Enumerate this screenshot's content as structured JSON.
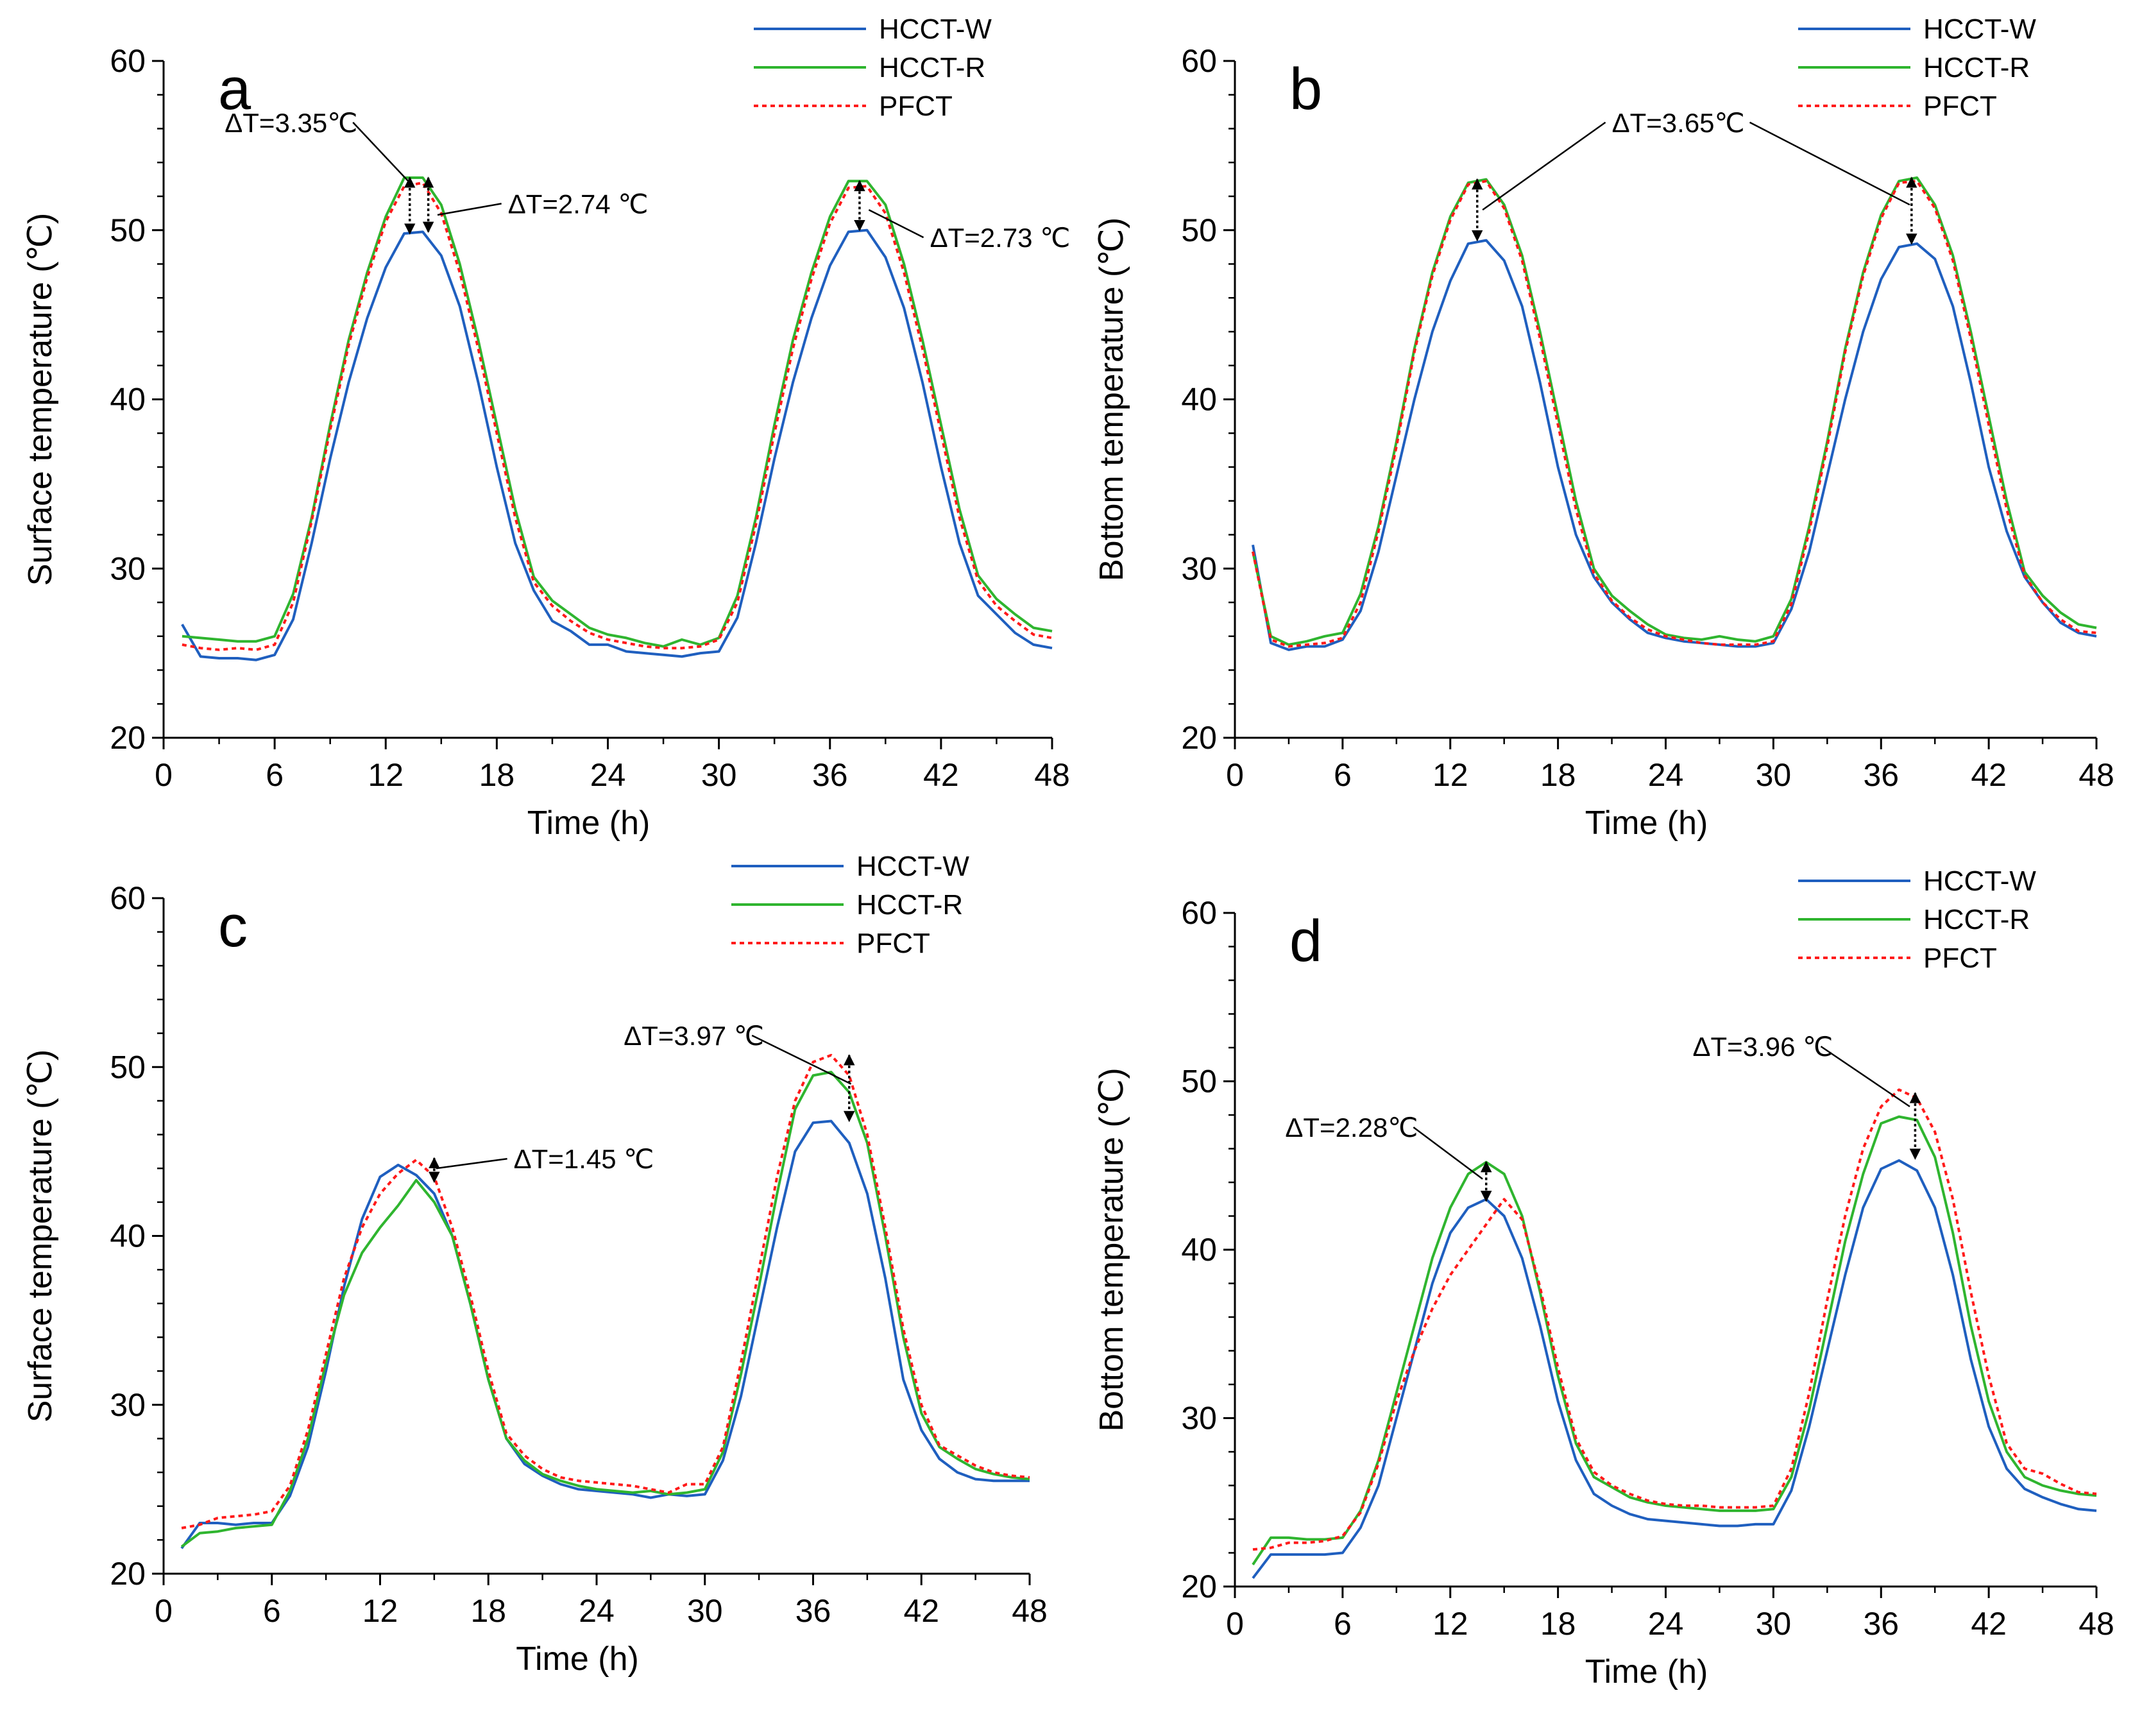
{
  "colors": {
    "hcct_w": "#1f5fbf",
    "hcct_r": "#2fb52f",
    "pfct": "#ff1a1a",
    "axis": "#000000"
  },
  "chart_data": [
    {
      "id": "a",
      "type": "line",
      "panel_label": "a",
      "xlabel": "Time (h)",
      "ylabel": "Surface temperature (℃)",
      "xlim": [
        0,
        48
      ],
      "ylim": [
        20,
        60
      ],
      "xticks": [
        0,
        6,
        12,
        18,
        24,
        30,
        36,
        42,
        48
      ],
      "yticks": [
        20,
        30,
        40,
        50,
        60
      ],
      "x": [
        1,
        2,
        3,
        4,
        5,
        6,
        7,
        8,
        9,
        10,
        11,
        12,
        13,
        14,
        15,
        16,
        17,
        18,
        19,
        20,
        21,
        22,
        23,
        24,
        25,
        26,
        27,
        28,
        29,
        30,
        31,
        32,
        33,
        34,
        35,
        36,
        37,
        38,
        39,
        40,
        41,
        42,
        43,
        44,
        45,
        46,
        47,
        48
      ],
      "legend": [
        "HCCT-W",
        "HCCT-R",
        "PFCT"
      ],
      "series": [
        {
          "name": "HCCT-W",
          "values": [
            26.7,
            24.8,
            24.7,
            24.7,
            24.6,
            24.9,
            27.0,
            31.5,
            36.5,
            41.0,
            44.8,
            47.8,
            49.8,
            49.9,
            48.5,
            45.5,
            41.0,
            36.0,
            31.5,
            28.7,
            26.9,
            26.3,
            25.5,
            25.5,
            25.1,
            25.0,
            24.9,
            24.8,
            25.0,
            25.1,
            27.1,
            31.5,
            36.5,
            41.0,
            44.8,
            47.9,
            49.9,
            50.0,
            48.4,
            45.4,
            41.0,
            36.0,
            31.5,
            28.4,
            27.3,
            26.2,
            25.5,
            25.3
          ]
        },
        {
          "name": "HCCT-R",
          "values": [
            26.0,
            25.9,
            25.8,
            25.7,
            25.7,
            26.0,
            28.5,
            33.0,
            38.5,
            43.5,
            47.5,
            50.8,
            53.1,
            53.1,
            51.5,
            48.0,
            43.5,
            38.5,
            33.5,
            29.5,
            28.1,
            27.3,
            26.5,
            26.1,
            25.9,
            25.6,
            25.4,
            25.8,
            25.5,
            25.9,
            28.4,
            33.0,
            38.5,
            43.5,
            47.5,
            50.8,
            52.9,
            52.9,
            51.5,
            48.0,
            43.5,
            38.5,
            33.5,
            29.6,
            28.2,
            27.3,
            26.5,
            26.3
          ]
        },
        {
          "name": "PFCT",
          "values": [
            25.5,
            25.3,
            25.2,
            25.3,
            25.2,
            25.5,
            28.0,
            32.8,
            38.2,
            43.2,
            47.2,
            50.5,
            52.6,
            52.8,
            51.0,
            47.5,
            43.0,
            38.0,
            33.0,
            29.2,
            27.8,
            26.9,
            26.2,
            25.8,
            25.6,
            25.4,
            25.3,
            25.3,
            25.4,
            25.8,
            28.0,
            32.6,
            38.0,
            43.0,
            47.1,
            50.4,
            52.5,
            52.6,
            51.0,
            47.5,
            43.0,
            38.0,
            33.0,
            29.3,
            27.8,
            26.9,
            26.1,
            25.9
          ]
        }
      ],
      "annotations": [
        {
          "text": "ΔT=3.35℃",
          "tx": 3.3,
          "ty": 55.8,
          "ax": 13.3,
          "ay": 52.8,
          "anchor": "start"
        },
        {
          "text": "ΔT=2.74 ℃",
          "tx": 18.6,
          "ty": 51.0,
          "ax": 14.8,
          "ay": 50.9,
          "anchor": "start"
        },
        {
          "text": "ΔT=2.73 ℃",
          "tx": 41.4,
          "ty": 49.0,
          "ax": 38.1,
          "ay": 51.2,
          "anchor": "start"
        }
      ],
      "arrows": [
        {
          "x": 13.3,
          "y1": 53.1,
          "y2": 49.8
        },
        {
          "x": 14.3,
          "y1": 53.1,
          "y2": 49.9
        },
        {
          "x": 37.6,
          "y1": 52.9,
          "y2": 50.0
        }
      ]
    },
    {
      "id": "b",
      "type": "line",
      "panel_label": "b",
      "xlabel": "Time (h)",
      "ylabel": "Bottom temperature (℃)",
      "xlim": [
        0,
        48
      ],
      "ylim": [
        20,
        60
      ],
      "xticks": [
        0,
        6,
        12,
        18,
        24,
        30,
        36,
        42,
        48
      ],
      "yticks": [
        20,
        30,
        40,
        50,
        60
      ],
      "x": [
        1,
        2,
        3,
        4,
        5,
        6,
        7,
        8,
        9,
        10,
        11,
        12,
        13,
        14,
        15,
        16,
        17,
        18,
        19,
        20,
        21,
        22,
        23,
        24,
        25,
        26,
        27,
        28,
        29,
        30,
        31,
        32,
        33,
        34,
        35,
        36,
        37,
        38,
        39,
        40,
        41,
        42,
        43,
        44,
        45,
        46,
        47,
        48
      ],
      "legend": [
        "HCCT-W",
        "HCCT-R",
        "PFCT"
      ],
      "series": [
        {
          "name": "HCCT-W",
          "values": [
            31.4,
            25.6,
            25.2,
            25.4,
            25.4,
            25.8,
            27.5,
            31.0,
            35.5,
            40.0,
            44.0,
            47.0,
            49.2,
            49.4,
            48.2,
            45.5,
            41.0,
            36.0,
            32.0,
            29.5,
            28.0,
            27.0,
            26.2,
            25.9,
            25.7,
            25.6,
            25.5,
            25.4,
            25.4,
            25.6,
            27.6,
            31.0,
            35.5,
            40.0,
            44.0,
            47.1,
            49.0,
            49.2,
            48.3,
            45.5,
            41.0,
            36.0,
            32.2,
            29.5,
            28.0,
            26.8,
            26.2,
            26.0
          ]
        },
        {
          "name": "HCCT-R",
          "values": [
            31.0,
            26.0,
            25.5,
            25.7,
            26.0,
            26.2,
            28.5,
            32.5,
            37.5,
            43.0,
            47.5,
            50.8,
            52.8,
            53.0,
            51.5,
            48.5,
            44.0,
            39.0,
            34.0,
            30.0,
            28.4,
            27.5,
            26.7,
            26.1,
            25.9,
            25.8,
            26.0,
            25.8,
            25.7,
            26.0,
            28.2,
            32.5,
            37.5,
            43.0,
            47.5,
            50.9,
            52.9,
            53.1,
            51.5,
            48.5,
            44.0,
            39.0,
            34.0,
            29.8,
            28.4,
            27.4,
            26.7,
            26.5
          ]
        },
        {
          "name": "PFCT",
          "values": [
            31.0,
            25.8,
            25.4,
            25.5,
            25.6,
            25.9,
            28.0,
            32.2,
            37.2,
            42.8,
            47.3,
            50.6,
            52.7,
            52.9,
            51.3,
            48.2,
            43.6,
            38.5,
            33.5,
            29.7,
            28.1,
            27.1,
            26.4,
            26.0,
            25.8,
            25.6,
            25.5,
            25.5,
            25.5,
            25.7,
            27.9,
            32.2,
            37.2,
            42.8,
            47.3,
            50.7,
            52.8,
            52.9,
            51.3,
            48.2,
            43.6,
            38.5,
            33.5,
            29.6,
            28.0,
            27.0,
            26.3,
            26.2
          ]
        }
      ],
      "annotations": [
        {
          "text": "ΔT=3.65℃",
          "tx": 21.0,
          "ty": 55.8,
          "ax": 13.8,
          "ay": 51.2,
          "anchor": "start",
          "ax2": 37.6,
          "ay2": 51.5
        }
      ],
      "arrows": [
        {
          "x": 13.5,
          "y1": 53.0,
          "y2": 49.4
        },
        {
          "x": 37.7,
          "y1": 53.1,
          "y2": 49.2
        }
      ]
    },
    {
      "id": "c",
      "type": "line",
      "panel_label": "c",
      "xlabel": "Time (h)",
      "ylabel": "Surface temperature (℃)",
      "xlim": [
        0,
        48
      ],
      "ylim": [
        20,
        60
      ],
      "xticks": [
        0,
        6,
        12,
        18,
        24,
        30,
        36,
        42,
        48
      ],
      "yticks": [
        20,
        30,
        40,
        50,
        60
      ],
      "x": [
        1,
        2,
        3,
        4,
        5,
        6,
        7,
        8,
        9,
        10,
        11,
        12,
        13,
        14,
        15,
        16,
        17,
        18,
        19,
        20,
        21,
        22,
        23,
        24,
        25,
        26,
        27,
        28,
        29,
        30,
        31,
        32,
        33,
        34,
        35,
        36,
        37,
        38,
        39,
        40,
        41,
        42,
        43,
        44,
        45,
        46,
        47,
        48
      ],
      "legend": [
        "HCCT-W",
        "HCCT-R",
        "PFCT"
      ],
      "series": [
        {
          "name": "HCCT-W",
          "values": [
            21.5,
            23.0,
            23.0,
            22.9,
            23.0,
            23.0,
            24.6,
            27.5,
            32.0,
            37.0,
            41.0,
            43.5,
            44.2,
            43.6,
            42.5,
            40.0,
            36.0,
            31.5,
            28.0,
            26.5,
            25.8,
            25.3,
            25.0,
            24.9,
            24.8,
            24.7,
            24.5,
            24.7,
            24.6,
            24.7,
            26.7,
            30.5,
            35.5,
            40.5,
            45.0,
            46.7,
            46.8,
            45.5,
            42.5,
            37.5,
            31.5,
            28.5,
            26.8,
            26.0,
            25.6,
            25.5,
            25.5,
            25.5
          ]
        },
        {
          "name": "HCCT-R",
          "values": [
            21.6,
            22.4,
            22.5,
            22.7,
            22.8,
            22.9,
            24.9,
            28.0,
            32.5,
            36.5,
            39.0,
            40.5,
            41.8,
            43.3,
            42.0,
            40.0,
            36.0,
            31.5,
            28.0,
            26.7,
            25.9,
            25.5,
            25.2,
            25.0,
            24.9,
            24.8,
            24.9,
            24.7,
            24.8,
            25.0,
            27.2,
            31.8,
            37.0,
            42.5,
            47.5,
            49.5,
            49.7,
            48.5,
            45.5,
            40.0,
            34.0,
            29.5,
            27.5,
            26.8,
            26.2,
            25.9,
            25.7,
            25.6
          ]
        },
        {
          "name": "PFCT",
          "values": [
            22.7,
            22.9,
            23.3,
            23.4,
            23.5,
            23.7,
            25.2,
            28.5,
            33.0,
            37.5,
            40.5,
            42.5,
            43.7,
            44.5,
            43.5,
            40.5,
            36.5,
            32.0,
            28.3,
            27.0,
            26.2,
            25.7,
            25.5,
            25.4,
            25.3,
            25.2,
            25.0,
            24.8,
            25.3,
            25.3,
            27.5,
            32.5,
            38.0,
            43.5,
            48.0,
            50.3,
            50.7,
            49.5,
            46.0,
            40.5,
            34.5,
            30.0,
            27.6,
            27.0,
            26.4,
            26.0,
            25.8,
            25.7
          ]
        }
      ],
      "annotations": [
        {
          "text": "ΔT=1.45 ℃",
          "tx": 19.4,
          "ty": 44.0,
          "ax": 15.1,
          "ay": 44.0,
          "anchor": "start"
        },
        {
          "text": "ΔT=3.97 ℃",
          "tx": 25.5,
          "ty": 51.3,
          "ax": 38.1,
          "ay": 49.0,
          "anchor": "start"
        }
      ],
      "arrows": [
        {
          "x": 15.0,
          "y1": 44.6,
          "y2": 43.2
        },
        {
          "x": 38.0,
          "y1": 50.7,
          "y2": 46.8
        }
      ]
    },
    {
      "id": "d",
      "type": "line",
      "panel_label": "d",
      "xlabel": "Time (h)",
      "ylabel": "Bottom temperature (℃)",
      "xlim": [
        0,
        48
      ],
      "ylim": [
        20,
        60
      ],
      "xticks": [
        0,
        6,
        12,
        18,
        24,
        30,
        36,
        42,
        48
      ],
      "yticks": [
        20,
        30,
        40,
        50,
        60
      ],
      "x": [
        1,
        2,
        3,
        4,
        5,
        6,
        7,
        8,
        9,
        10,
        11,
        12,
        13,
        14,
        15,
        16,
        17,
        18,
        19,
        20,
        21,
        22,
        23,
        24,
        25,
        26,
        27,
        28,
        29,
        30,
        31,
        32,
        33,
        34,
        35,
        36,
        37,
        38,
        39,
        40,
        41,
        42,
        43,
        44,
        45,
        46,
        47,
        48
      ],
      "legend": [
        "HCCT-W",
        "HCCT-R",
        "PFCT"
      ],
      "series": [
        {
          "name": "HCCT-W",
          "values": [
            20.5,
            21.9,
            21.9,
            21.9,
            21.9,
            22.0,
            23.5,
            26.0,
            30.0,
            34.0,
            38.0,
            41.0,
            42.5,
            43.0,
            42.0,
            39.5,
            35.5,
            31.0,
            27.5,
            25.5,
            24.8,
            24.3,
            24.0,
            23.9,
            23.8,
            23.7,
            23.6,
            23.6,
            23.7,
            23.7,
            25.7,
            29.5,
            34.0,
            38.5,
            42.5,
            44.8,
            45.3,
            44.7,
            42.5,
            38.5,
            33.5,
            29.5,
            27.0,
            25.8,
            25.3,
            24.9,
            24.6,
            24.5
          ]
        },
        {
          "name": "HCCT-R",
          "values": [
            21.3,
            22.9,
            22.9,
            22.8,
            22.8,
            22.9,
            24.5,
            27.5,
            31.5,
            35.5,
            39.5,
            42.5,
            44.5,
            45.2,
            44.5,
            42.0,
            37.5,
            32.5,
            28.5,
            26.5,
            25.9,
            25.3,
            25.0,
            24.8,
            24.7,
            24.6,
            24.5,
            24.5,
            24.5,
            24.6,
            26.5,
            30.5,
            35.5,
            40.5,
            44.5,
            47.5,
            47.9,
            47.7,
            45.5,
            41.0,
            35.5,
            31.0,
            28.0,
            26.5,
            26.0,
            25.7,
            25.5,
            25.4
          ]
        },
        {
          "name": "PFCT",
          "values": [
            22.2,
            22.3,
            22.6,
            22.6,
            22.7,
            23.0,
            24.4,
            27.3,
            31.0,
            34.0,
            36.5,
            38.5,
            40.0,
            41.5,
            43.0,
            41.8,
            37.8,
            33.0,
            28.8,
            26.8,
            26.0,
            25.5,
            25.1,
            24.9,
            24.8,
            24.8,
            24.7,
            24.7,
            24.7,
            24.8,
            27.0,
            31.5,
            37.0,
            42.0,
            46.0,
            48.5,
            49.5,
            49.0,
            47.0,
            43.0,
            37.5,
            32.5,
            28.5,
            27.0,
            26.7,
            26.1,
            25.6,
            25.5
          ]
        }
      ],
      "annotations": [
        {
          "text": "ΔT=2.28℃",
          "tx": 2.8,
          "ty": 46.7,
          "ax": 13.8,
          "ay": 44.2,
          "anchor": "start"
        },
        {
          "text": "ΔT=3.96 ℃",
          "tx": 25.5,
          "ty": 51.5,
          "ax": 37.6,
          "ay": 48.5,
          "anchor": "start"
        }
      ],
      "arrows": [
        {
          "x": 14.0,
          "y1": 45.2,
          "y2": 42.9
        },
        {
          "x": 37.9,
          "y1": 49.3,
          "y2": 45.4
        }
      ]
    }
  ]
}
